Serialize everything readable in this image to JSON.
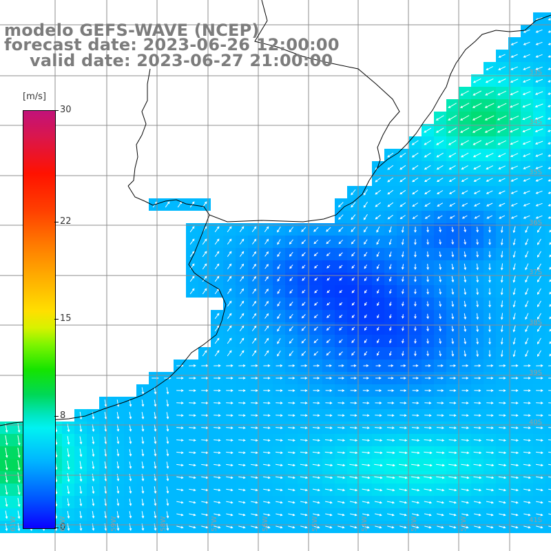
{
  "title": {
    "line1": "modelo GEFS-WAVE (NCEP)",
    "line2": "forecast date: 2023-06-26 12:00:00",
    "line3": "valid date: 2023-06-27 21:00:00"
  },
  "colorbar": {
    "unit": "[m/s]",
    "min": 0,
    "max": 30,
    "ticks": [
      "30",
      "22",
      "15",
      "8",
      "0"
    ],
    "tick_values": [
      30,
      22,
      15,
      8,
      0
    ]
  },
  "map": {
    "field": "wind speed with direction arrows",
    "lat_labels": [
      "33S",
      "34S",
      "35S",
      "36S",
      "37S",
      "38S",
      "39S",
      "40S",
      "41S"
    ],
    "lon_labels": [
      "61W",
      "60W",
      "59W",
      "58W",
      "57W",
      "56W",
      "55W",
      "54W",
      "53W",
      "52W"
    ],
    "colors": {
      "land": "#ffffff",
      "grid": "#8c8c8c",
      "coast": "#000000",
      "arrows": "#ffffff",
      "label": "#7c7c7c"
    }
  }
}
